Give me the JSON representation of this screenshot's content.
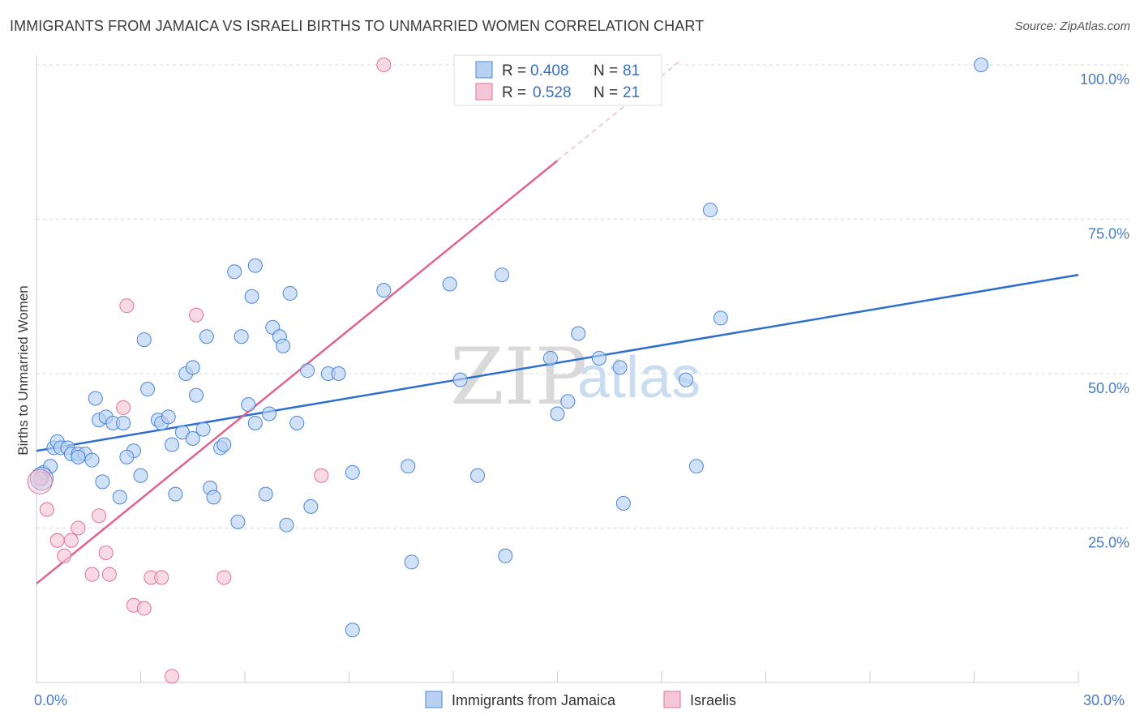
{
  "title": "IMMIGRANTS FROM JAMAICA VS ISRAELI BIRTHS TO UNMARRIED WOMEN CORRELATION CHART",
  "source": "Source: ZipAtlas.com",
  "watermark": {
    "zip": "ZIP",
    "atlas": "atlas"
  },
  "colors": {
    "blue": "#4a86d8",
    "blue_fill": "#b8d1f2",
    "pink": "#e0729a",
    "pink_fill": "#f5c6d4",
    "axis_text": "#4a7bc4",
    "grid": "#d8d8d8"
  },
  "chart_data": {
    "type": "scatter",
    "title": "IMMIGRANTS FROM JAMAICA VS ISRAELI BIRTHS TO UNMARRIED WOMEN CORRELATION CHART",
    "xlabel": "",
    "ylabel": "Births to Unmarried Women",
    "xlim": [
      0,
      30
    ],
    "ylim": [
      0,
      100
    ],
    "x_tick_labels": [
      "0.0%",
      "30.0%"
    ],
    "y_ticks": [
      25,
      50,
      75,
      100
    ],
    "y_tick_labels": [
      "25.0%",
      "50.0%",
      "75.0%",
      "100.0%"
    ],
    "grid": true,
    "legend": {
      "position": "top-center",
      "entries": [
        {
          "r_label": "R =",
          "r": "0.408",
          "n_label": "N =",
          "n": "81"
        },
        {
          "r_label": "R =",
          "r": "0.528",
          "n_label": "N =",
          "n": "21"
        }
      ]
    },
    "bottom_legend": [
      "Immigrants from Jamaica",
      "Israelis"
    ],
    "series": [
      {
        "name": "Immigrants from Jamaica",
        "r": 0.408,
        "n": 81,
        "trend": {
          "x0": 0,
          "y0": 37.5,
          "x1": 30,
          "y1": 66
        },
        "points": [
          [
            0.2,
            34
          ],
          [
            0.4,
            35
          ],
          [
            0.5,
            38
          ],
          [
            0.6,
            39
          ],
          [
            0.7,
            38
          ],
          [
            0.9,
            38
          ],
          [
            1.0,
            37
          ],
          [
            1.2,
            37
          ],
          [
            1.4,
            37
          ],
          [
            1.6,
            36
          ],
          [
            1.2,
            36.5
          ],
          [
            1.8,
            42.5
          ],
          [
            1.7,
            46
          ],
          [
            2.0,
            43
          ],
          [
            2.2,
            42
          ],
          [
            2.5,
            42
          ],
          [
            2.8,
            37.5
          ],
          [
            2.6,
            36.5
          ],
          [
            1.9,
            32.5
          ],
          [
            2.4,
            30
          ],
          [
            3.0,
            33.5
          ],
          [
            3.2,
            47.5
          ],
          [
            3.5,
            42.5
          ],
          [
            3.6,
            42
          ],
          [
            3.8,
            43
          ],
          [
            4.2,
            40.5
          ],
          [
            4.5,
            39.5
          ],
          [
            3.9,
            38.5
          ],
          [
            4.0,
            30.5
          ],
          [
            4.3,
            50
          ],
          [
            4.5,
            51
          ],
          [
            4.6,
            46.5
          ],
          [
            4.8,
            41
          ],
          [
            5.0,
            31.5
          ],
          [
            5.1,
            30
          ],
          [
            5.3,
            38
          ],
          [
            5.4,
            38.5
          ],
          [
            3.1,
            55.5
          ],
          [
            4.9,
            56
          ],
          [
            5.7,
            66.5
          ],
          [
            5.9,
            56
          ],
          [
            6.2,
            62.5
          ],
          [
            6.3,
            67.5
          ],
          [
            5.8,
            26
          ],
          [
            6.1,
            45
          ],
          [
            6.3,
            42
          ],
          [
            6.6,
            30.5
          ],
          [
            6.7,
            43.5
          ],
          [
            6.8,
            57.5
          ],
          [
            7.0,
            56
          ],
          [
            7.1,
            54.5
          ],
          [
            7.3,
            63
          ],
          [
            7.2,
            25.5
          ],
          [
            7.5,
            42
          ],
          [
            7.8,
            50.5
          ],
          [
            7.9,
            28.5
          ],
          [
            8.4,
            50
          ],
          [
            8.7,
            50
          ],
          [
            9.1,
            34
          ],
          [
            9.1,
            8.5
          ],
          [
            10.0,
            63.5
          ],
          [
            10.7,
            35
          ],
          [
            10.8,
            19.5
          ],
          [
            11.9,
            64.5
          ],
          [
            12.2,
            49
          ],
          [
            12.7,
            33.5
          ],
          [
            13.4,
            66
          ],
          [
            13.5,
            20.5
          ],
          [
            14.8,
            52.5
          ],
          [
            15.0,
            43.5
          ],
          [
            15.3,
            45.5
          ],
          [
            15.6,
            56.5
          ],
          [
            16.2,
            52.5
          ],
          [
            16.8,
            51
          ],
          [
            16.9,
            29
          ],
          [
            18.7,
            49
          ],
          [
            19.0,
            35
          ],
          [
            19.4,
            76.5
          ],
          [
            19.7,
            59
          ],
          [
            27.2,
            100
          ],
          [
            0.15,
            33
          ]
        ]
      },
      {
        "name": "Israelis",
        "r": 0.528,
        "n": 21,
        "trend": {
          "x0": 0,
          "y0": 16,
          "x1": 15,
          "y1": 84.5,
          "x_dash_end": 18.5
        },
        "points": [
          [
            0.1,
            33
          ],
          [
            0.3,
            28
          ],
          [
            0.6,
            23
          ],
          [
            0.8,
            20.5
          ],
          [
            1.0,
            23
          ],
          [
            1.2,
            25
          ],
          [
            1.6,
            17.5
          ],
          [
            1.8,
            27
          ],
          [
            2.0,
            21
          ],
          [
            2.1,
            17.5
          ],
          [
            2.5,
            44.5
          ],
          [
            2.6,
            61
          ],
          [
            2.8,
            12.5
          ],
          [
            3.1,
            12
          ],
          [
            3.3,
            17
          ],
          [
            3.6,
            17
          ],
          [
            3.9,
            1
          ],
          [
            4.6,
            59.5
          ],
          [
            5.4,
            17
          ],
          [
            8.2,
            33.5
          ],
          [
            10.0,
            100
          ]
        ]
      }
    ]
  }
}
